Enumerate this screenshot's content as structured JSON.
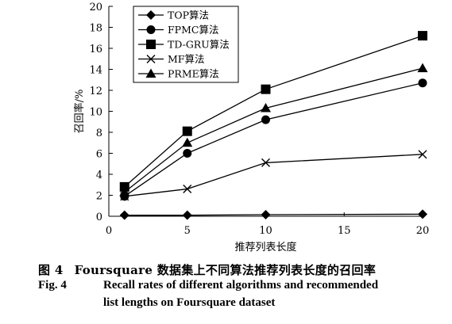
{
  "chart_data": {
    "type": "line",
    "title": "",
    "xlabel": "推荐列表长度",
    "ylabel": "召回率/%",
    "x": [
      1,
      5,
      10,
      20
    ],
    "xlim": [
      0,
      20
    ],
    "ylim": [
      0,
      20
    ],
    "xticks": [
      0,
      5,
      10,
      15,
      20
    ],
    "yticks": [
      0,
      2,
      4,
      6,
      8,
      10,
      12,
      14,
      16,
      18,
      20
    ],
    "xtick_labels": [
      "0",
      "5",
      "10",
      "15",
      "20"
    ],
    "ytick_labels": [
      "0",
      "2",
      "4",
      "6",
      "8",
      "10",
      "12",
      "14",
      "16",
      "18",
      "20"
    ],
    "grid": false,
    "legend_position": "top-left",
    "series": [
      {
        "name": "TOP算法",
        "marker": "diamond",
        "values": [
          0.1,
          0.1,
          0.15,
          0.2
        ]
      },
      {
        "name": "FPMC算法",
        "marker": "circle",
        "values": [
          1.9,
          6.0,
          9.2,
          12.7
        ]
      },
      {
        "name": "TD-GRU算法",
        "marker": "square",
        "values": [
          2.8,
          8.1,
          12.1,
          17.2
        ]
      },
      {
        "name": "MF算法",
        "marker": "cross",
        "values": [
          1.9,
          2.6,
          5.1,
          5.9
        ]
      },
      {
        "name": "PRME算法",
        "marker": "triangle",
        "values": [
          2.3,
          7.0,
          10.3,
          14.1
        ]
      }
    ]
  },
  "caption": {
    "zh_number": "图 4",
    "zh_text": "Foursquare 数据集上不同算法推荐列表长度的召回率",
    "en_number": "Fig. 4",
    "en_line1": "Recall rates of different algorithms and recommended",
    "en_line2": "list lengths on Foursquare dataset"
  }
}
